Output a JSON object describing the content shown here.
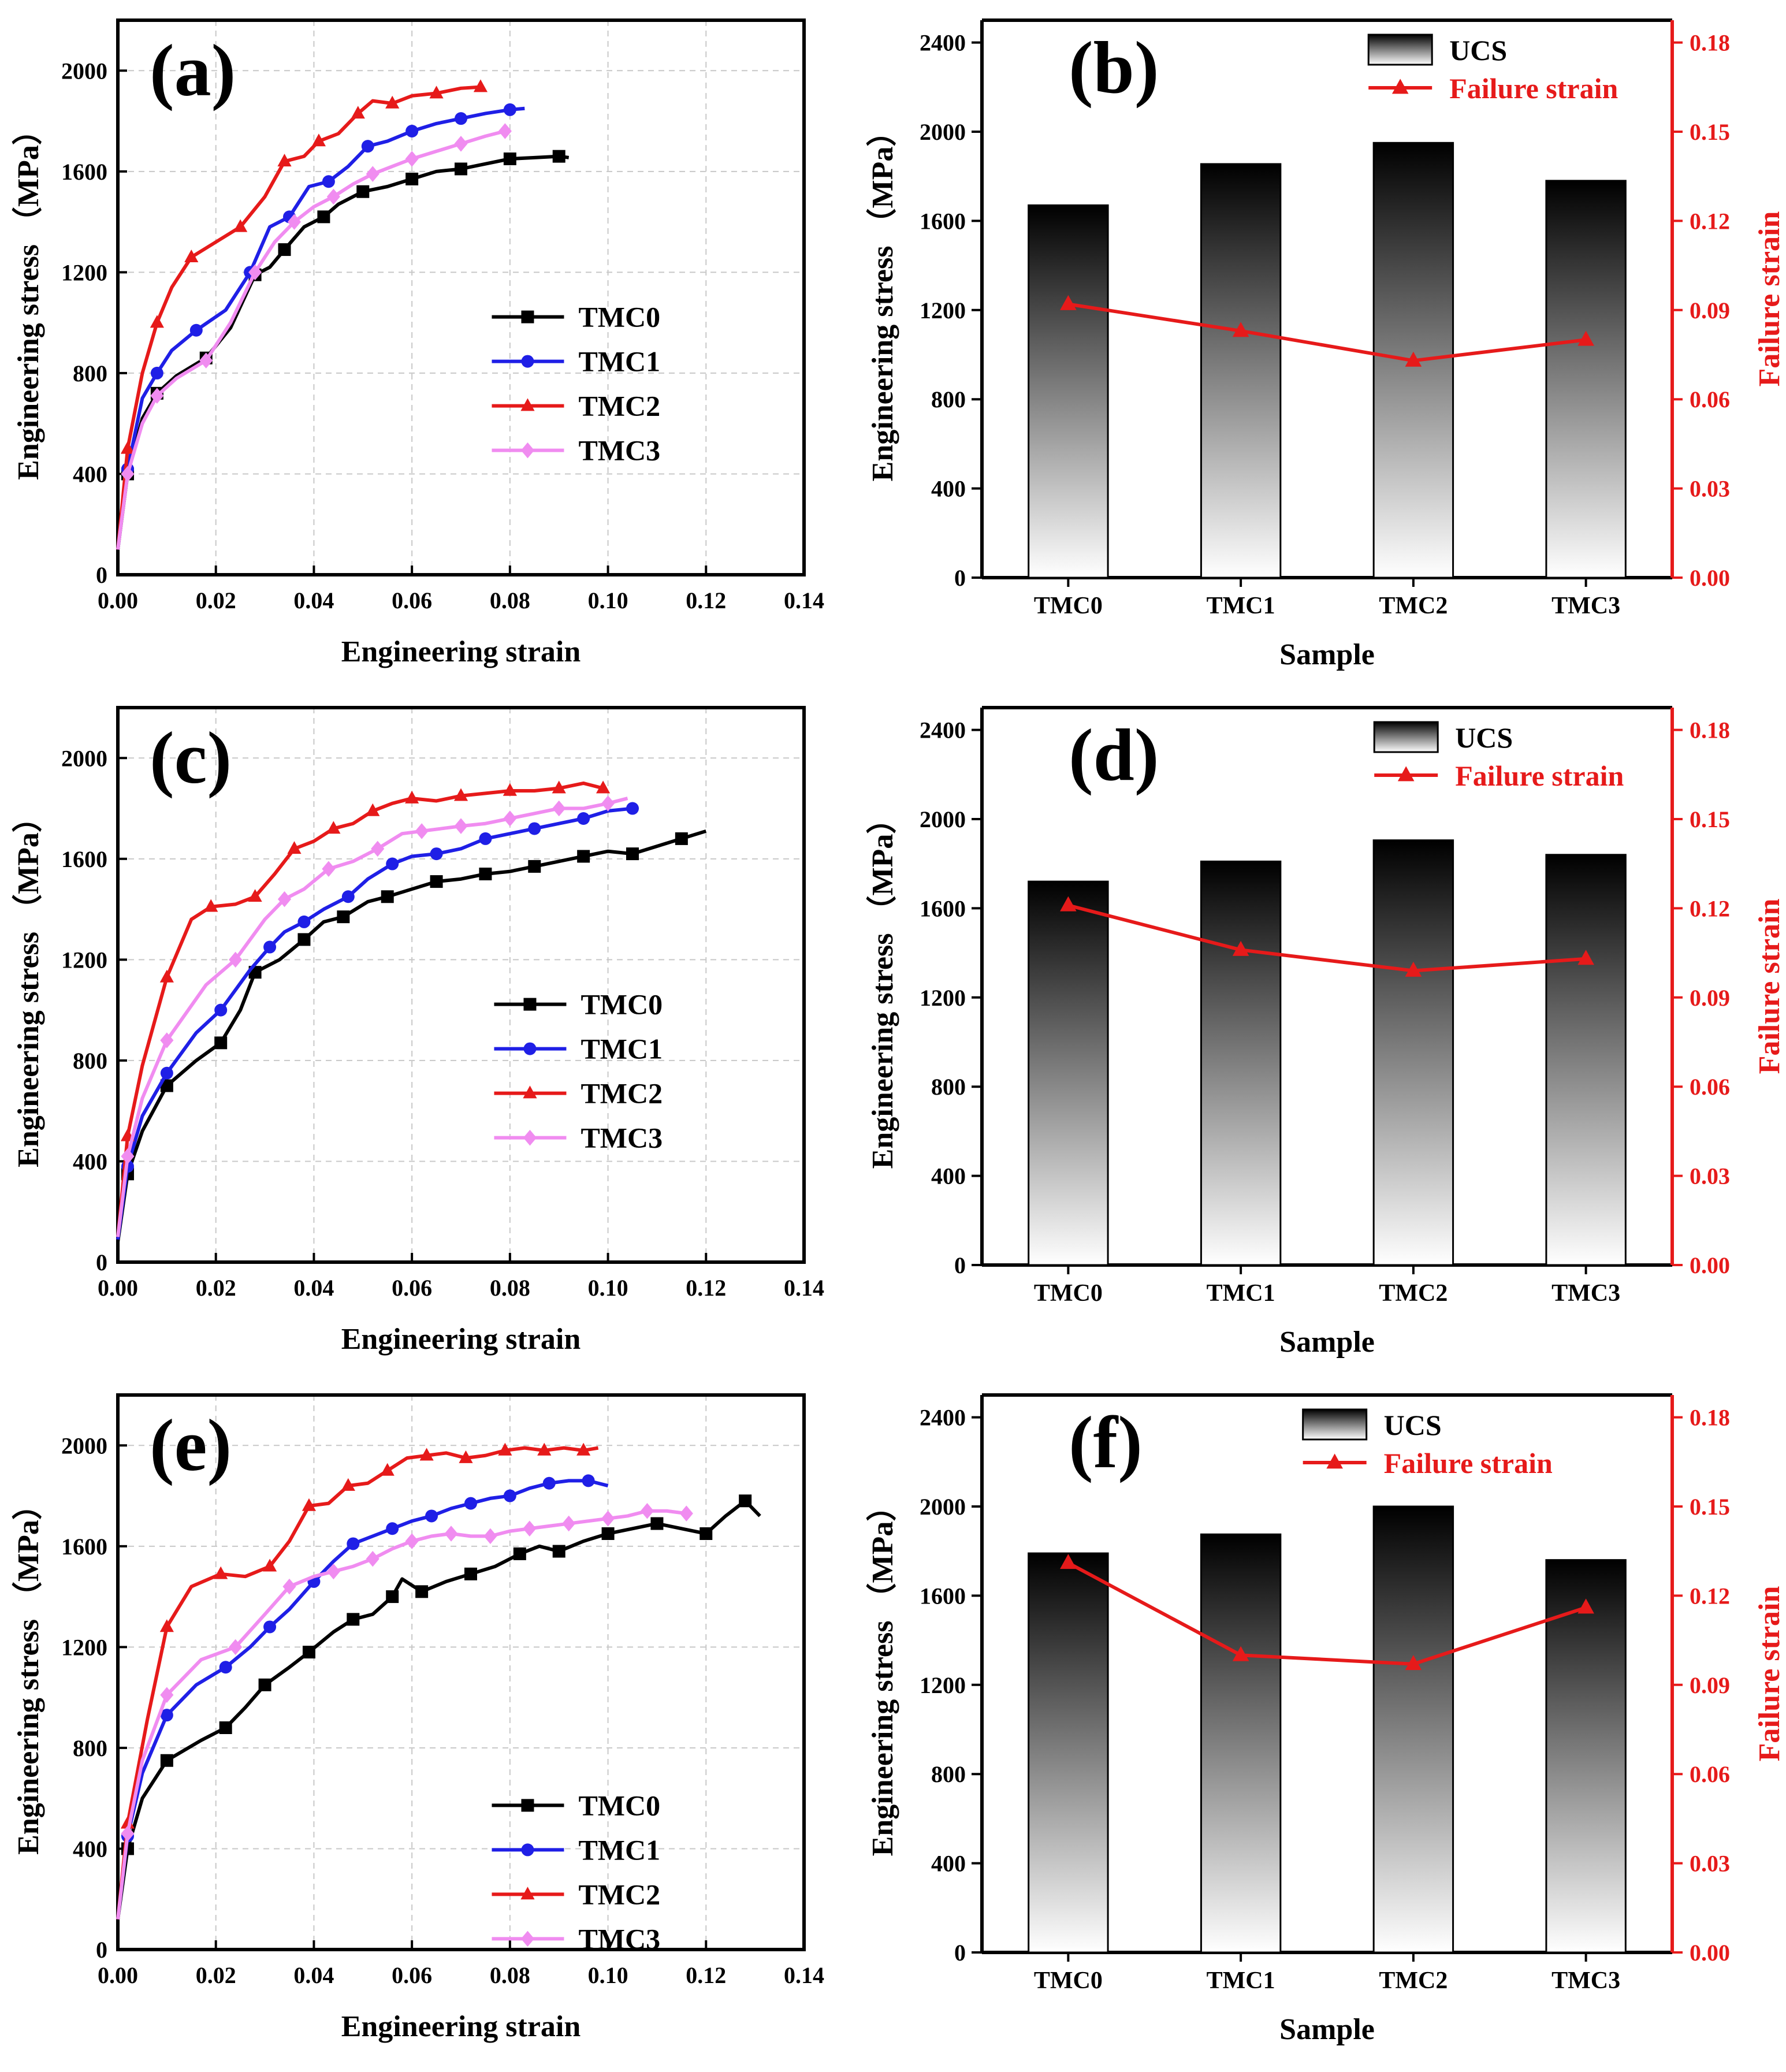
{
  "colors": {
    "TMC0": "#000000",
    "TMC1": "#1f1fe6",
    "TMC2": "#e61a1a",
    "TMC3": "#f08cf0",
    "right_axis": "#e61a1a"
  },
  "chart_data": [
    {
      "type": "line",
      "panel_label": "(a)",
      "xlabel": "Engineering strain",
      "ylabel": "Engineering stress （MPa）",
      "xlim": [
        0,
        0.14
      ],
      "ylim": [
        0,
        2200
      ],
      "xticks": [
        "0.00",
        "0.02",
        "0.04",
        "0.06",
        "0.08",
        "0.10",
        "0.12",
        "0.14"
      ],
      "yticks": [
        "0",
        "400",
        "800",
        "1200",
        "1600",
        "2000"
      ],
      "legend_position": "middle-right",
      "series": [
        {
          "name": "TMC0",
          "marker": "square",
          "x": [
            0,
            0.002,
            0.005,
            0.008,
            0.012,
            0.018,
            0.023,
            0.028,
            0.031,
            0.034,
            0.038,
            0.042,
            0.045,
            0.05,
            0.055,
            0.06,
            0.065,
            0.07,
            0.075,
            0.08,
            0.085,
            0.09,
            0.092
          ],
          "y": [
            100,
            400,
            620,
            720,
            790,
            860,
            980,
            1190,
            1220,
            1290,
            1380,
            1420,
            1470,
            1520,
            1540,
            1570,
            1600,
            1610,
            1630,
            1650,
            1655,
            1660,
            1655
          ]
        },
        {
          "name": "TMC1",
          "marker": "circle",
          "x": [
            0,
            0.002,
            0.005,
            0.008,
            0.011,
            0.016,
            0.022,
            0.027,
            0.031,
            0.035,
            0.039,
            0.043,
            0.047,
            0.051,
            0.055,
            0.06,
            0.065,
            0.07,
            0.075,
            0.08,
            0.083
          ],
          "y": [
            100,
            420,
            700,
            800,
            890,
            970,
            1050,
            1200,
            1380,
            1420,
            1540,
            1560,
            1620,
            1700,
            1720,
            1760,
            1790,
            1810,
            1830,
            1845,
            1850
          ]
        },
        {
          "name": "TMC2",
          "marker": "triangle",
          "x": [
            0,
            0.002,
            0.005,
            0.008,
            0.011,
            0.015,
            0.02,
            0.025,
            0.03,
            0.034,
            0.038,
            0.041,
            0.045,
            0.049,
            0.052,
            0.056,
            0.06,
            0.065,
            0.07,
            0.074
          ],
          "y": [
            100,
            500,
            800,
            1000,
            1140,
            1260,
            1320,
            1380,
            1500,
            1640,
            1660,
            1720,
            1750,
            1830,
            1880,
            1870,
            1900,
            1910,
            1930,
            1935
          ]
        },
        {
          "name": "TMC3",
          "marker": "diamond",
          "x": [
            0,
            0.002,
            0.005,
            0.008,
            0.012,
            0.018,
            0.023,
            0.028,
            0.032,
            0.036,
            0.04,
            0.044,
            0.048,
            0.052,
            0.056,
            0.06,
            0.065,
            0.07,
            0.075,
            0.079
          ],
          "y": [
            100,
            400,
            600,
            710,
            780,
            850,
            1000,
            1200,
            1320,
            1400,
            1460,
            1500,
            1550,
            1590,
            1620,
            1650,
            1680,
            1710,
            1740,
            1760
          ]
        }
      ]
    },
    {
      "type": "bar",
      "panel_label": "(b)",
      "categories": [
        "TMC0",
        "TMC1",
        "TMC2",
        "TMC3"
      ],
      "values": [
        1670,
        1855,
        1950,
        1780
      ],
      "failure_strain": [
        0.092,
        0.083,
        0.073,
        0.08
      ],
      "xlabel": "Sample",
      "ylabel": "Engineering stress （MPa）",
      "y2label": "Failure strain",
      "ylim": [
        0,
        2500
      ],
      "y2lim": [
        0,
        0.1875
      ],
      "yticks": [
        "0",
        "400",
        "800",
        "1200",
        "1600",
        "2000",
        "2400"
      ],
      "y2ticks": [
        "0.00",
        "0.03",
        "0.06",
        "0.09",
        "0.12",
        "0.15",
        "0.18"
      ],
      "legend": [
        "UCS",
        "Failure strain"
      ],
      "legend_position": "top-right"
    },
    {
      "type": "line",
      "panel_label": "(c)",
      "xlabel": "Engineering strain",
      "ylabel": "Engineering stress （MPa）",
      "xlim": [
        0,
        0.14
      ],
      "ylim": [
        0,
        2200
      ],
      "xticks": [
        "0.00",
        "0.02",
        "0.04",
        "0.06",
        "0.08",
        "0.10",
        "0.12",
        "0.14"
      ],
      "yticks": [
        "0",
        "400",
        "800",
        "1200",
        "1600",
        "2000"
      ],
      "legend_position": "middle-right",
      "series": [
        {
          "name": "TMC0",
          "marker": "square",
          "x": [
            0,
            0.002,
            0.005,
            0.01,
            0.016,
            0.021,
            0.025,
            0.028,
            0.033,
            0.038,
            0.042,
            0.046,
            0.051,
            0.055,
            0.06,
            0.065,
            0.07,
            0.075,
            0.08,
            0.085,
            0.09,
            0.095,
            0.1,
            0.105,
            0.11,
            0.115,
            0.12
          ],
          "y": [
            80,
            350,
            520,
            700,
            800,
            870,
            1000,
            1150,
            1200,
            1280,
            1350,
            1370,
            1430,
            1450,
            1480,
            1510,
            1520,
            1540,
            1550,
            1570,
            1590,
            1610,
            1630,
            1620,
            1650,
            1680,
            1710
          ]
        },
        {
          "name": "TMC1",
          "marker": "circle",
          "x": [
            0,
            0.002,
            0.005,
            0.01,
            0.016,
            0.021,
            0.027,
            0.031,
            0.034,
            0.038,
            0.042,
            0.047,
            0.051,
            0.056,
            0.06,
            0.065,
            0.07,
            0.075,
            0.08,
            0.085,
            0.09,
            0.095,
            0.1,
            0.105
          ],
          "y": [
            90,
            380,
            580,
            750,
            910,
            1000,
            1160,
            1250,
            1310,
            1350,
            1400,
            1450,
            1520,
            1580,
            1610,
            1620,
            1640,
            1680,
            1700,
            1720,
            1740,
            1760,
            1790,
            1800
          ]
        },
        {
          "name": "TMC2",
          "marker": "triangle",
          "x": [
            0,
            0.002,
            0.005,
            0.01,
            0.015,
            0.019,
            0.024,
            0.028,
            0.032,
            0.036,
            0.04,
            0.044,
            0.048,
            0.052,
            0.056,
            0.06,
            0.065,
            0.07,
            0.075,
            0.08,
            0.085,
            0.09,
            0.095,
            0.099
          ],
          "y": [
            100,
            500,
            780,
            1130,
            1360,
            1410,
            1420,
            1450,
            1540,
            1640,
            1670,
            1720,
            1740,
            1790,
            1820,
            1840,
            1830,
            1850,
            1860,
            1870,
            1870,
            1880,
            1900,
            1880
          ]
        },
        {
          "name": "TMC3",
          "marker": "diamond",
          "x": [
            0,
            0.002,
            0.005,
            0.01,
            0.018,
            0.024,
            0.03,
            0.034,
            0.038,
            0.043,
            0.048,
            0.053,
            0.058,
            0.062,
            0.066,
            0.07,
            0.075,
            0.08,
            0.085,
            0.09,
            0.095,
            0.1,
            0.104
          ],
          "y": [
            100,
            420,
            650,
            880,
            1100,
            1200,
            1360,
            1440,
            1480,
            1560,
            1590,
            1640,
            1700,
            1710,
            1720,
            1730,
            1740,
            1760,
            1780,
            1800,
            1800,
            1820,
            1840
          ]
        }
      ]
    },
    {
      "type": "bar",
      "panel_label": "(d)",
      "categories": [
        "TMC0",
        "TMC1",
        "TMC2",
        "TMC3"
      ],
      "values": [
        1720,
        1810,
        1905,
        1840
      ],
      "failure_strain": [
        0.121,
        0.106,
        0.099,
        0.103
      ],
      "xlabel": "Sample",
      "ylabel": "Engineering stress （MPa）",
      "y2label": "Failure strain",
      "ylim": [
        0,
        2500
      ],
      "y2lim": [
        0,
        0.1875
      ],
      "yticks": [
        "0",
        "400",
        "800",
        "1200",
        "1600",
        "2000",
        "2400"
      ],
      "y2ticks": [
        "0.00",
        "0.03",
        "0.06",
        "0.09",
        "0.12",
        "0.15",
        "0.18"
      ],
      "legend": [
        "UCS",
        "Failure strain"
      ],
      "legend_position": "top-right"
    },
    {
      "type": "line",
      "panel_label": "(e)",
      "xlabel": "Engineering strain",
      "ylabel": "Engineering stress （MPa）",
      "xlim": [
        0,
        0.14
      ],
      "ylim": [
        0,
        2200
      ],
      "xticks": [
        "0.00",
        "0.02",
        "0.04",
        "0.06",
        "0.08",
        "0.10",
        "0.12",
        "0.14"
      ],
      "yticks": [
        "0",
        "400",
        "800",
        "1200",
        "1600",
        "2000"
      ],
      "legend_position": "lower-right",
      "series": [
        {
          "name": "TMC0",
          "marker": "square",
          "x": [
            0,
            0.002,
            0.005,
            0.01,
            0.017,
            0.022,
            0.026,
            0.03,
            0.035,
            0.039,
            0.044,
            0.048,
            0.052,
            0.056,
            0.058,
            0.062,
            0.067,
            0.072,
            0.077,
            0.082,
            0.086,
            0.09,
            0.095,
            0.1,
            0.105,
            0.11,
            0.115,
            0.12,
            0.124,
            0.128,
            0.131
          ],
          "y": [
            120,
            400,
            600,
            750,
            830,
            880,
            960,
            1050,
            1120,
            1180,
            1260,
            1310,
            1330,
            1400,
            1470,
            1420,
            1460,
            1490,
            1520,
            1570,
            1600,
            1580,
            1620,
            1650,
            1670,
            1690,
            1670,
            1650,
            1720,
            1780,
            1720
          ]
        },
        {
          "name": "TMC1",
          "marker": "circle",
          "x": [
            0,
            0.002,
            0.005,
            0.01,
            0.016,
            0.022,
            0.027,
            0.031,
            0.035,
            0.04,
            0.044,
            0.048,
            0.052,
            0.056,
            0.06,
            0.064,
            0.068,
            0.072,
            0.076,
            0.08,
            0.084,
            0.088,
            0.092,
            0.096,
            0.1
          ],
          "y": [
            120,
            450,
            700,
            930,
            1050,
            1120,
            1200,
            1280,
            1350,
            1460,
            1540,
            1610,
            1640,
            1670,
            1700,
            1720,
            1750,
            1770,
            1790,
            1800,
            1830,
            1850,
            1860,
            1860,
            1840
          ]
        },
        {
          "name": "TMC2",
          "marker": "triangle",
          "x": [
            0,
            0.002,
            0.006,
            0.01,
            0.015,
            0.021,
            0.026,
            0.031,
            0.035,
            0.039,
            0.043,
            0.047,
            0.051,
            0.055,
            0.059,
            0.063,
            0.067,
            0.071,
            0.075,
            0.079,
            0.083,
            0.087,
            0.091,
            0.095,
            0.098
          ],
          "y": [
            120,
            500,
            910,
            1280,
            1440,
            1490,
            1480,
            1520,
            1620,
            1760,
            1770,
            1840,
            1850,
            1900,
            1950,
            1960,
            1970,
            1950,
            1960,
            1980,
            1990,
            1980,
            1990,
            1980,
            1990
          ]
        },
        {
          "name": "TMC3",
          "marker": "diamond",
          "x": [
            0,
            0.002,
            0.005,
            0.01,
            0.017,
            0.024,
            0.03,
            0.035,
            0.04,
            0.044,
            0.048,
            0.052,
            0.056,
            0.06,
            0.064,
            0.068,
            0.072,
            0.076,
            0.08,
            0.084,
            0.088,
            0.092,
            0.096,
            0.1,
            0.104,
            0.108,
            0.112,
            0.116
          ],
          "y": [
            120,
            460,
            750,
            1010,
            1150,
            1200,
            1330,
            1440,
            1480,
            1500,
            1520,
            1550,
            1590,
            1620,
            1640,
            1650,
            1640,
            1640,
            1660,
            1670,
            1680,
            1690,
            1700,
            1710,
            1720,
            1740,
            1740,
            1730
          ]
        }
      ]
    },
    {
      "type": "bar",
      "panel_label": "(f)",
      "categories": [
        "TMC0",
        "TMC1",
        "TMC2",
        "TMC3"
      ],
      "values": [
        1790,
        1875,
        2000,
        1760
      ],
      "failure_strain": [
        0.131,
        0.1,
        0.097,
        0.116
      ],
      "xlabel": "Sample",
      "ylabel": "Engineering stress （MPa）",
      "y2label": "Failure strain",
      "ylim": [
        0,
        2500
      ],
      "y2lim": [
        0,
        0.1875
      ],
      "yticks": [
        "0",
        "400",
        "800",
        "1200",
        "1600",
        "2000",
        "2400"
      ],
      "y2ticks": [
        "0.00",
        "0.03",
        "0.06",
        "0.09",
        "0.12",
        "0.15",
        "0.18"
      ],
      "legend": [
        "UCS",
        "Failure strain"
      ],
      "legend_position": "top-center"
    }
  ]
}
